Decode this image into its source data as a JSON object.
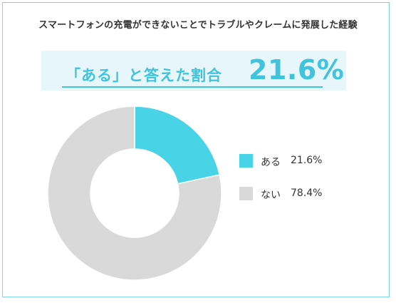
{
  "title": "スマートフォンの充電ができないことでトラブルやクレームに発展した経験",
  "banner": {
    "label": "「ある」と答えた割合",
    "value": "21.6%"
  },
  "colors": {
    "accent": "#40c3db",
    "slice_yes": "#48d3e6",
    "slice_no": "#d9d9d9",
    "border": "#7fd3e6",
    "banner_bg": "#e6f6fb"
  },
  "legend": [
    {
      "label": "ある",
      "value": "21.6%"
    },
    {
      "label": "ない",
      "value": "78.4%"
    }
  ],
  "chart_data": {
    "type": "pie",
    "donut": true,
    "categories": [
      "ある",
      "ない"
    ],
    "values": [
      21.6,
      78.4
    ],
    "colors": [
      "#48d3e6",
      "#d9d9d9"
    ],
    "legend_position": "right"
  }
}
